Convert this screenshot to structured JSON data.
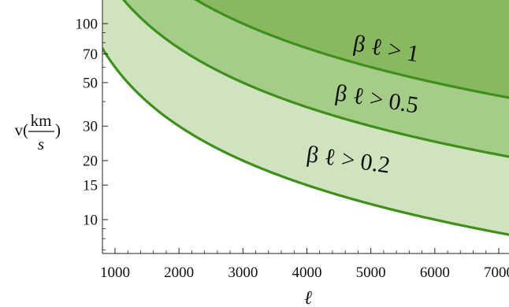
{
  "chart_data": {
    "type": "area",
    "title": "",
    "xlabel": "ℓ",
    "ylabel": {
      "prefix": "v(",
      "numerator": "km",
      "denominator": "s",
      "suffix": ")"
    },
    "xlim": [
      700,
      7600
    ],
    "ylim": [
      6,
      120
    ],
    "y_scale": "log",
    "grid": false,
    "x_ticks": [
      1000,
      2000,
      3000,
      4000,
      5000,
      6000,
      7000
    ],
    "y_ticks": [
      10,
      15,
      20,
      30,
      50,
      70,
      100
    ],
    "x_tick_labels": [
      "1000",
      "2000",
      "3000",
      "4000",
      "5000",
      "6000",
      "7000"
    ],
    "y_tick_labels": [
      "10",
      "15",
      "20",
      "30",
      "50",
      "70",
      "100"
    ],
    "x_range_drawn": [
      800,
      7500
    ],
    "series": [
      {
        "label": "β ℓ > 0.2",
        "relation": "v = 60000 / ℓ",
        "coefficient": 60000,
        "fill": "#cfe3bf"
      },
      {
        "label": "β ℓ > 0.5",
        "relation": "v = 150000 / ℓ",
        "coefficient": 150000,
        "fill": "#a6cc8a"
      },
      {
        "label": "β ℓ > 1",
        "relation": "v = 300000 / ℓ",
        "coefficient": 300000,
        "fill": "#88b860"
      }
    ],
    "curve_color": "#3f8f1c"
  }
}
